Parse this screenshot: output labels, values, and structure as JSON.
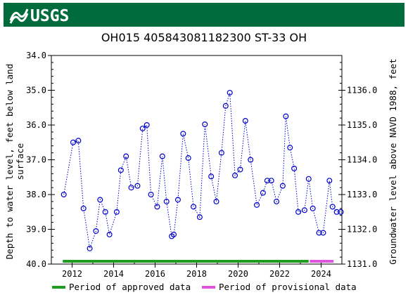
{
  "agency": "USGS",
  "chart_data": {
    "type": "scatter",
    "title": "OH015 405843081182300 ST-33 OH",
    "ylabel_left": "Depth to water level, feet below land surface",
    "ylabel_right": "Groundwater level above NAVD 1988, feet",
    "y_left_range": [
      34.0,
      40.0
    ],
    "y_left_ticks": [
      "34.0",
      "35.0",
      "36.0",
      "37.0",
      "38.0",
      "39.0",
      "40.0"
    ],
    "y_right_ticks": [
      "1136.0",
      "1135.0",
      "1134.0",
      "1133.0",
      "1132.0",
      "1131.0"
    ],
    "x_range": [
      2011.0,
      2025.0
    ],
    "x_ticks": [
      "2012",
      "2014",
      "2016",
      "2018",
      "2020",
      "2022",
      "2024"
    ],
    "series": [
      {
        "marker": "circle-open",
        "line": "dotted",
        "color": "#0000cc",
        "x": [
          2011.6,
          2012.05,
          2012.3,
          2012.55,
          2012.85,
          2013.15,
          2013.35,
          2013.6,
          2013.8,
          2014.15,
          2014.35,
          2014.6,
          2014.85,
          2015.15,
          2015.4,
          2015.6,
          2015.8,
          2016.1,
          2016.35,
          2016.55,
          2016.8,
          2016.9,
          2017.1,
          2017.35,
          2017.6,
          2017.85,
          2018.15,
          2018.4,
          2018.7,
          2018.95,
          2019.2,
          2019.4,
          2019.6,
          2019.85,
          2020.1,
          2020.35,
          2020.6,
          2020.9,
          2021.2,
          2021.4,
          2021.6,
          2021.85,
          2022.15,
          2022.3,
          2022.5,
          2022.7,
          2022.9,
          2023.2,
          2023.4,
          2023.6,
          2023.9,
          2024.1,
          2024.4,
          2024.55,
          2024.75,
          2024.95
        ],
        "y": [
          38.0,
          36.5,
          36.45,
          38.4,
          39.55,
          39.05,
          38.15,
          38.5,
          39.15,
          38.5,
          37.3,
          36.9,
          37.8,
          37.75,
          36.1,
          36.0,
          38.0,
          38.35,
          36.9,
          38.2,
          39.2,
          39.15,
          38.15,
          36.25,
          36.95,
          38.35,
          38.65,
          35.98,
          37.48,
          38.2,
          36.8,
          35.45,
          35.07,
          37.45,
          37.28,
          35.88,
          37.0,
          38.3,
          37.95,
          37.6,
          37.6,
          38.2,
          37.75,
          35.75,
          36.65,
          37.25,
          38.5,
          38.45,
          37.55,
          38.4,
          39.1,
          39.1,
          37.6,
          38.35,
          38.5,
          38.5
        ]
      }
    ],
    "legend": [
      {
        "label": "Period of approved data",
        "color": "#1f9b1f"
      },
      {
        "label": "Period of provisional data",
        "color": "#dd55dd"
      }
    ],
    "periods": [
      {
        "type": "approved",
        "start": 2011.55,
        "end": 2023.4
      },
      {
        "type": "provisional",
        "start": 2023.45,
        "end": 2024.6
      }
    ]
  }
}
